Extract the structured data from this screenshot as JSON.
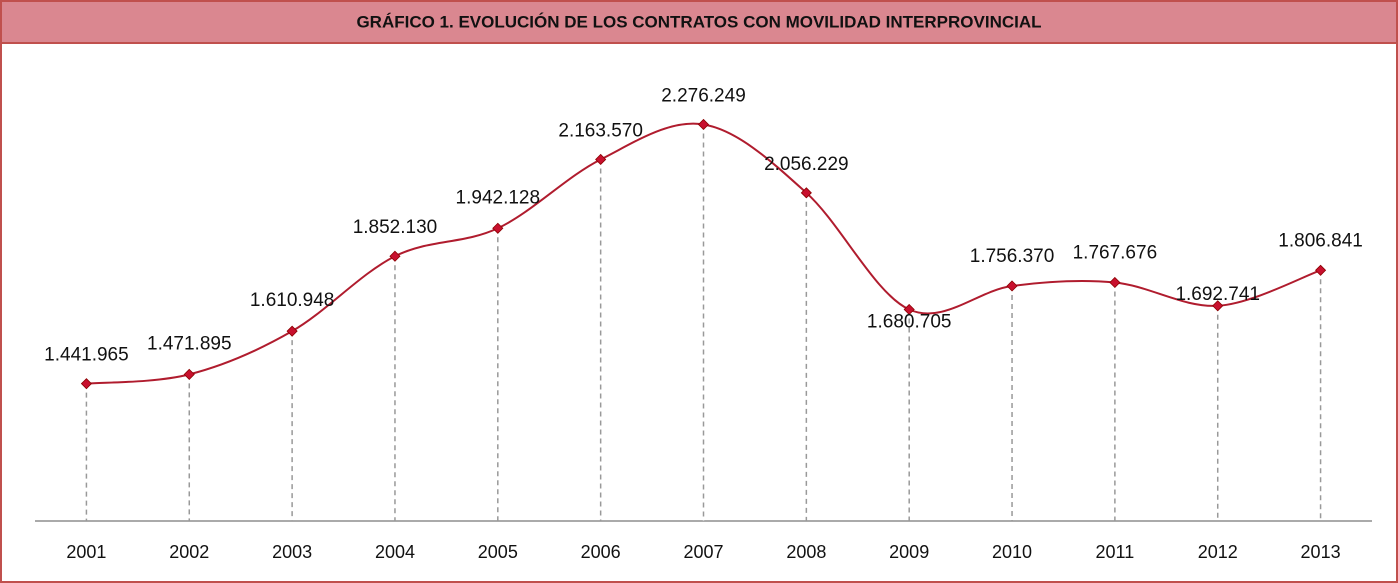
{
  "chart_data": {
    "type": "line",
    "title": "GRÁFICO 1. EVOLUCIÓN DE LOS CONTRATOS CON MOVILIDAD INTERPROVINCIAL",
    "categories": [
      "2001",
      "2002",
      "2003",
      "2004",
      "2005",
      "2006",
      "2007",
      "2008",
      "2009",
      "2010",
      "2011",
      "2012",
      "2013"
    ],
    "values": [
      1441965,
      1471895,
      1610948,
      1852130,
      1942128,
      2163570,
      2276249,
      2056229,
      1680705,
      1756370,
      1767676,
      1692741,
      1806841
    ],
    "value_labels": [
      "1.441.965",
      "1.471.895",
      "1.610.948",
      "1.852.130",
      "1.942.128",
      "2.163.570",
      "2.276.249",
      "2.056.229",
      "1.680.705",
      "1.756.370",
      "1.767.676",
      "1.692.741",
      "1.806.841"
    ],
    "color": "#b01c2e",
    "ylim": [
      1000000,
      2400000
    ],
    "smooth": true,
    "drop_lines": true
  }
}
